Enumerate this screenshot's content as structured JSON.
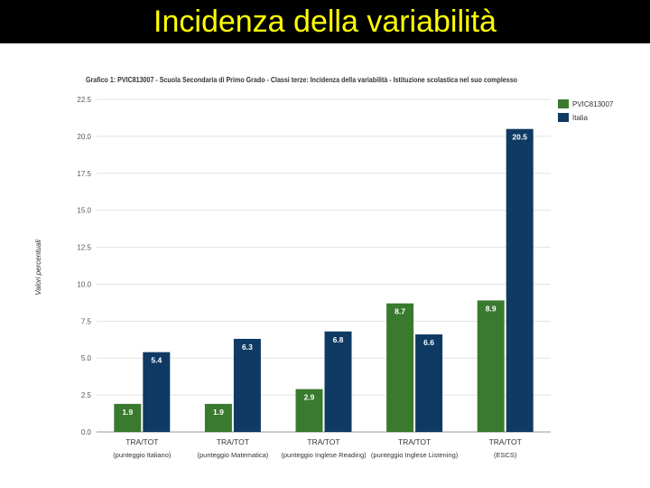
{
  "slide": {
    "title": "Incidenza della variabilità",
    "background": "#ffffff",
    "title_bar_color": "#000000",
    "title_color": "#ffff00"
  },
  "chart_data": {
    "type": "bar",
    "title": "Grafico 1: PVIC813007 - Scuola Secondaria di Primo Grado - Classi terze: Incidenza della variabilità - Istituzione scolastica nel suo complesso",
    "ylabel": "Valori percentuali",
    "xlabel": "",
    "ylim": [
      0,
      22.5
    ],
    "yticks": [
      0,
      2.5,
      5,
      7.5,
      10,
      12.5,
      15,
      17.5,
      20,
      22.5
    ],
    "ytick_labels": [
      "0.0",
      "2.5",
      "5.0",
      "7.5",
      "10.0",
      "12.5",
      "15.0",
      "17.5",
      "20.0",
      "22.5"
    ],
    "grid": true,
    "legend_position": "top-right",
    "categories": [
      {
        "line1": "TRA/TOT",
        "line2": "(punteggio Italiano)"
      },
      {
        "line1": "TRA/TOT",
        "line2": "(punteggio Matematica)"
      },
      {
        "line1": "TRA/TOT",
        "line2": "(punteggio Inglese Reading)"
      },
      {
        "line1": "TRA/TOT",
        "line2": "(punteggio Inglese Listening)"
      },
      {
        "line1": "TRA/TOT",
        "line2": "(ESCS)"
      }
    ],
    "series": [
      {
        "name": "PVIC813007",
        "color": "#3a7a2e",
        "values": [
          1.9,
          1.9,
          2.9,
          8.7,
          8.9
        ],
        "labels": [
          "1.9",
          "1.9",
          "2.9",
          "8.7",
          "8.9"
        ]
      },
      {
        "name": "Italia",
        "color": "#0e3a63",
        "values": [
          5.4,
          6.3,
          6.8,
          6.6,
          20.5
        ],
        "labels": [
          "5.4",
          "6.3",
          "6.8",
          "6.6",
          "20.5"
        ]
      }
    ]
  }
}
